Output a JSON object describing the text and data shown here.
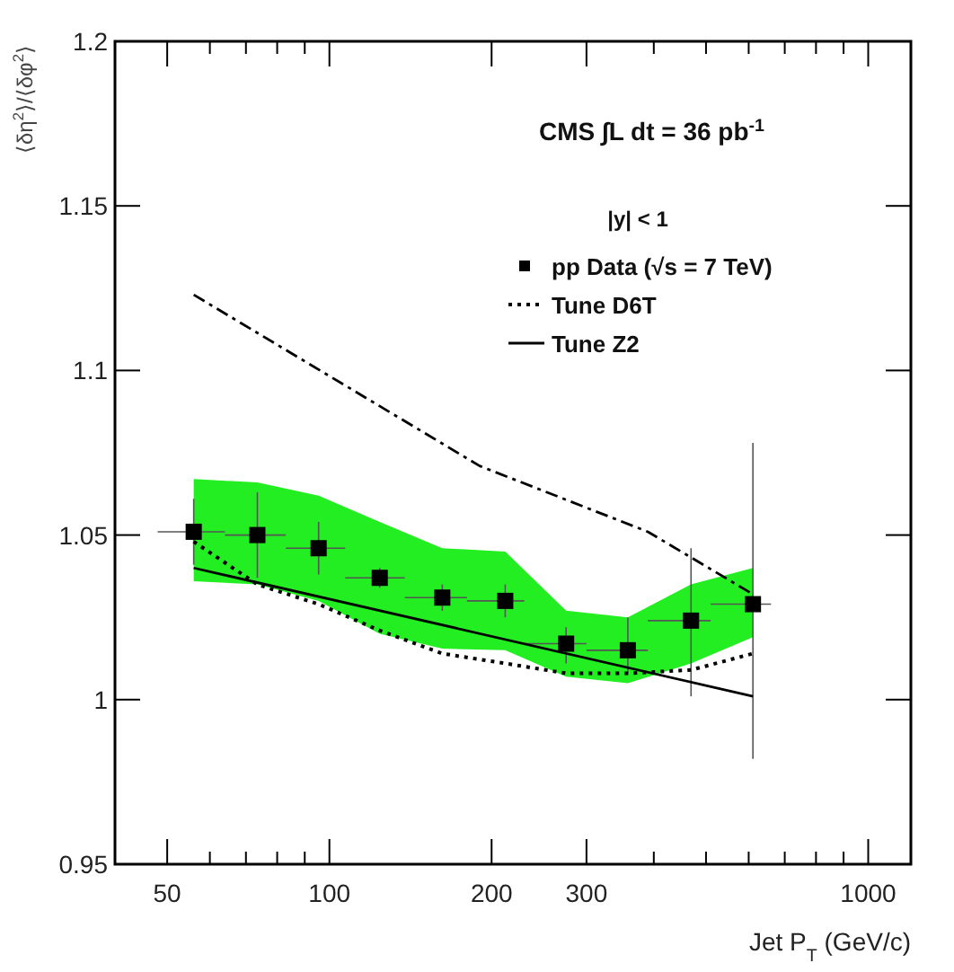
{
  "chart_data": {
    "type": "line",
    "ylabel": "⟨δη$^{2}$⟩/⟨δφ$^{2}$⟩",
    "xlabel": "Jet P$_{T}$ (GeV/c)",
    "annotations": [
      "CMS  ∫L dt = 36 pb$^{-1}$",
      "|y| < 1"
    ],
    "log": "x",
    "xlim": [
      40,
      1200
    ],
    "xticks": [
      50,
      {
        "value": 60,
        "label": null
      },
      {
        "value": 70,
        "label": null
      },
      {
        "value": 80,
        "label": null
      },
      {
        "value": 90,
        "label": null
      },
      100,
      200,
      300,
      {
        "value": 400,
        "label": null
      },
      {
        "value": 500,
        "label": null
      },
      {
        "value": 600,
        "label": null
      },
      {
        "value": 700,
        "label": null
      },
      {
        "value": 800,
        "label": null
      },
      {
        "value": 900,
        "label": null
      },
      1000
    ],
    "ylim": [
      0.95,
      1.2
    ],
    "yticks": [
      0.95,
      1,
      1.05,
      1.1,
      1.15,
      1.2
    ],
    "legend": "top right",
    "grid": false,
    "series": [
      {
        "name": "pp Data (√s = 7 TeV)",
        "type": "scatter",
        "color": "#000000",
        "marker": "square",
        "x": [
          56,
          73.5,
          95.5,
          124,
          162,
          212,
          275,
          358,
          469,
          611
        ],
        "values": [
          1.051,
          1.05,
          1.046,
          1.037,
          1.031,
          1.03,
          1.017,
          1.015,
          1.024,
          1.029
        ],
        "errors": [
          [
            1.041,
            1.061
          ],
          [
            1.037,
            1.063
          ],
          [
            1.038,
            1.054
          ],
          [
            1.034,
            1.04
          ],
          [
            1.027,
            1.035
          ],
          [
            1.025,
            1.035
          ],
          [
            1.011,
            1.022
          ],
          [
            1.008,
            1.025
          ],
          [
            1.001,
            1.046
          ],
          [
            0.982,
            1.078
          ]
        ],
        "xerrors": [
          [
            48,
            64
          ],
          [
            64,
            83
          ],
          [
            83,
            107
          ],
          [
            107,
            138
          ],
          [
            138,
            180
          ],
          [
            180,
            230
          ],
          [
            230,
            300
          ],
          [
            300,
            390
          ],
          [
            390,
            510
          ],
          [
            510,
            660
          ]
        ],
        "lower": [
          1.036,
          1.035,
          1.03,
          1.02,
          1.0155,
          1.015,
          1.007,
          1.005,
          1.011,
          1.019
        ],
        "upper": [
          1.067,
          1.066,
          1.062,
          1.054,
          1.046,
          1.045,
          1.027,
          1.025,
          1.035,
          1.04
        ]
      },
      {
        "name": "Tune D6T",
        "color": "#000000",
        "line_style": "dotted",
        "x": [
          56,
          73.5,
          95.5,
          124,
          162,
          212,
          275,
          358,
          469,
          611
        ],
        "values": [
          1.048,
          1.035,
          1.029,
          1.021,
          1.014,
          1.011,
          1.008,
          1.008,
          1.009,
          1.014
        ]
      },
      {
        "name": "Tune Z2",
        "color": "#000000",
        "line_style": "solid",
        "x": [
          56,
          611
        ],
        "values": [
          1.04,
          1.001
        ]
      },
      {
        "color": "#000000",
        "line_style": "dashdot",
        "x": [
          56,
          190,
          390,
          611
        ],
        "values": [
          1.123,
          1.071,
          1.051,
          1.032
        ]
      }
    ]
  }
}
